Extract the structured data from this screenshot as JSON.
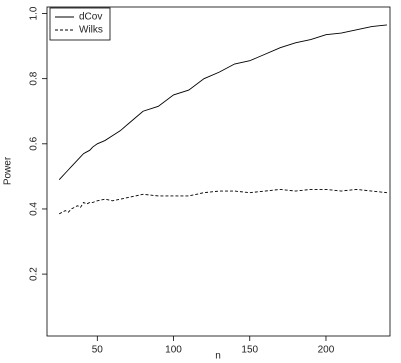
{
  "chart_data": {
    "type": "line",
    "x_label": "n",
    "y_label": "Power",
    "x": [
      25,
      27,
      29,
      31,
      33,
      35,
      37,
      39,
      41,
      43,
      45,
      47,
      50,
      55,
      60,
      65,
      70,
      75,
      80,
      90,
      100,
      110,
      120,
      130,
      140,
      150,
      160,
      170,
      180,
      190,
      200,
      210,
      220,
      230,
      240
    ],
    "series": [
      {
        "name": "dCov",
        "color": "#000000",
        "style": "solid",
        "values": [
          0.49,
          0.5,
          0.51,
          0.52,
          0.53,
          0.54,
          0.55,
          0.56,
          0.57,
          0.575,
          0.58,
          0.59,
          0.6,
          0.61,
          0.625,
          0.64,
          0.66,
          0.68,
          0.7,
          0.715,
          0.75,
          0.765,
          0.8,
          0.82,
          0.845,
          0.855,
          0.875,
          0.895,
          0.91,
          0.92,
          0.935,
          0.94,
          0.95,
          0.96,
          0.965
        ]
      },
      {
        "name": "Wilks",
        "color": "#000000",
        "style": "dashed",
        "values": [
          0.385,
          0.39,
          0.395,
          0.39,
          0.4,
          0.405,
          0.41,
          0.405,
          0.42,
          0.415,
          0.42,
          0.42,
          0.425,
          0.43,
          0.425,
          0.43,
          0.435,
          0.44,
          0.445,
          0.44,
          0.44,
          0.44,
          0.45,
          0.455,
          0.455,
          0.45,
          0.455,
          0.46,
          0.455,
          0.46,
          0.46,
          0.455,
          0.46,
          0.455,
          0.45
        ]
      }
    ],
    "xlim": [
      17,
      242
    ],
    "ylim": [
      0.01,
      1.02
    ],
    "xticks": [
      50,
      100,
      150,
      200
    ],
    "yticks": [
      0.2,
      0.4,
      0.6,
      0.8,
      {
        "value": 1,
        "label": "1.0"
      }
    ],
    "legend": "top-left"
  }
}
